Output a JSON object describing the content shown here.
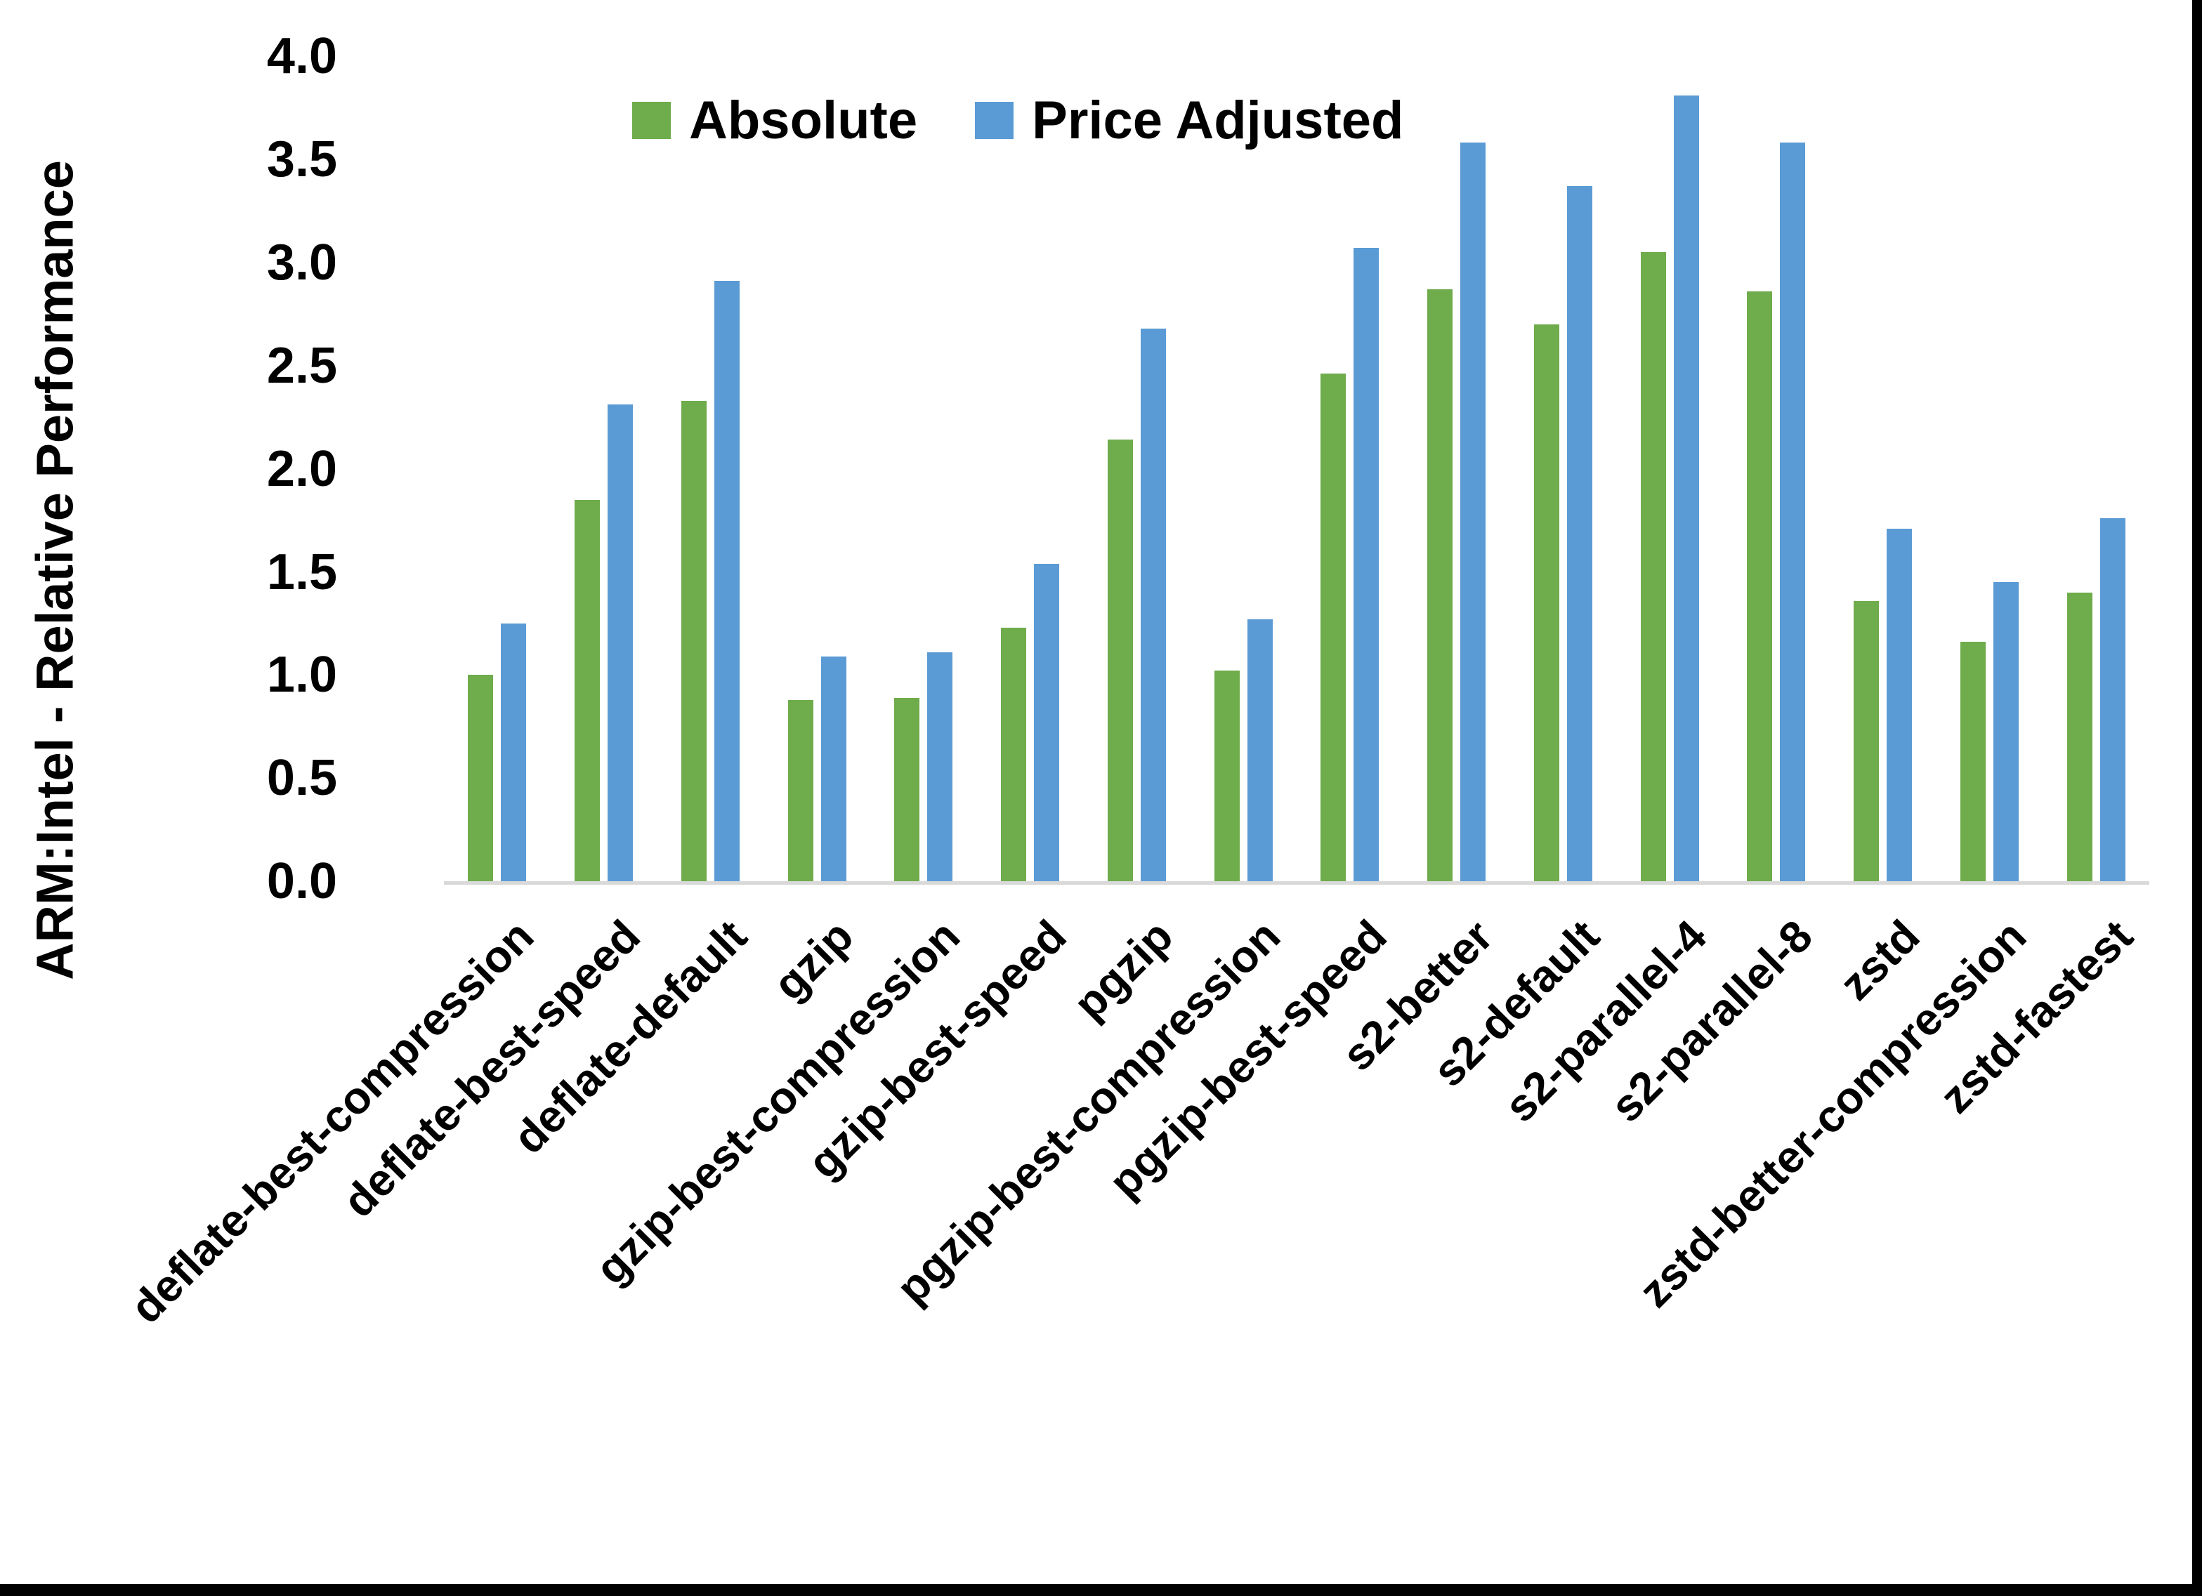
{
  "y_axis": {
    "title": "ARM:Intel - Relative Performance",
    "ticks": [
      "4.0",
      "3.5",
      "3.0",
      "2.5",
      "2.0",
      "1.5",
      "1.0",
      "0.5",
      "0.0"
    ]
  },
  "legend": {
    "items": [
      {
        "label": "Absolute",
        "color": "#6FAC4B"
      },
      {
        "label": "Price Adjusted",
        "color": "#5B9BD5"
      }
    ]
  },
  "colors": {
    "absolute": "#6FAC4B",
    "price_adjusted": "#5B9BD5",
    "axis_line": "#d9d9d9"
  },
  "chart_data": {
    "type": "bar",
    "title": "",
    "xlabel": "",
    "ylabel": "ARM:Intel - Relative Performance",
    "ylim": [
      0.0,
      4.0
    ],
    "ytick_step": 0.5,
    "grid": false,
    "legend_position": "top-center",
    "categories": [
      "deflate-best-compression",
      "deflate-best-speed",
      "deflate-default",
      "gzip",
      "gzip-best-compression",
      "gzip-best-speed",
      "pgzip",
      "pgzip-best-compression",
      "pgzip-best-speed",
      "s2-better",
      "s2-default",
      "s2-parallel-4",
      "s2-parallel-8",
      "zstd",
      "zstd-better-compression",
      "zstd-fastest"
    ],
    "series": [
      {
        "name": "Absolute",
        "values": [
          1.0,
          1.85,
          2.33,
          0.88,
          0.89,
          1.23,
          2.14,
          1.02,
          2.46,
          2.87,
          2.7,
          3.05,
          2.86,
          1.36,
          1.16,
          1.4
        ]
      },
      {
        "name": "Price Adjusted",
        "values": [
          1.25,
          2.31,
          2.91,
          1.09,
          1.11,
          1.54,
          2.68,
          1.27,
          3.07,
          3.58,
          3.37,
          3.81,
          3.58,
          1.71,
          1.45,
          1.76
        ]
      }
    ]
  }
}
